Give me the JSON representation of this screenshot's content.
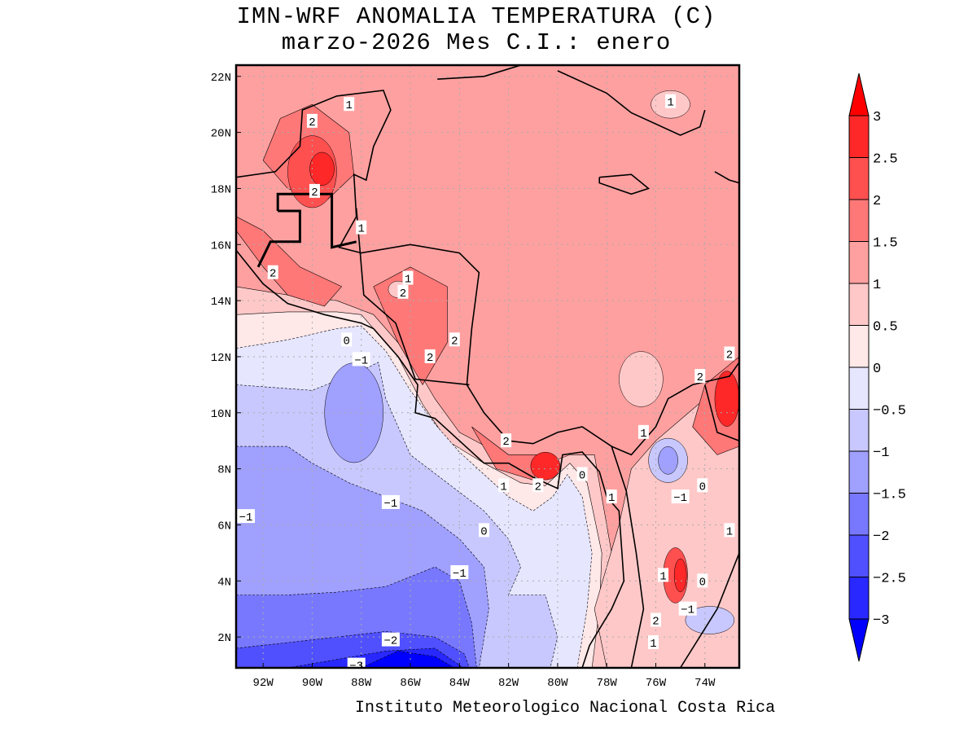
{
  "title": {
    "line1": "IMN-WRF  ANOMALIA TEMPERATURA (C)",
    "line2": "marzo-2026 Mes C.I.: enero"
  },
  "credit": "Instituto Meteorologico Nacional Costa Rica",
  "map": {
    "lon_range": [
      -93.1,
      -72.6
    ],
    "lat_range": [
      0.9,
      22.4
    ],
    "x_ticks": [
      {
        "lon": -92,
        "label": "92W"
      },
      {
        "lon": -90,
        "label": "90W"
      },
      {
        "lon": -88,
        "label": "88W"
      },
      {
        "lon": -86,
        "label": "86W"
      },
      {
        "lon": -84,
        "label": "84W"
      },
      {
        "lon": -82,
        "label": "82W"
      },
      {
        "lon": -80,
        "label": "80W"
      },
      {
        "lon": -78,
        "label": "78W"
      },
      {
        "lon": -76,
        "label": "76W"
      },
      {
        "lon": -74,
        "label": "74W"
      }
    ],
    "y_ticks": [
      {
        "lat": 2,
        "label": "2N"
      },
      {
        "lat": 4,
        "label": "4N"
      },
      {
        "lat": 6,
        "label": "6N"
      },
      {
        "lat": 8,
        "label": "8N"
      },
      {
        "lat": 10,
        "label": "10N"
      },
      {
        "lat": 12,
        "label": "12N"
      },
      {
        "lat": 14,
        "label": "14N"
      },
      {
        "lat": 16,
        "label": "16N"
      },
      {
        "lat": 18,
        "label": "18N"
      },
      {
        "lat": 20,
        "label": "20N"
      },
      {
        "lat": 22,
        "label": "22N"
      }
    ],
    "contour_labels": [
      {
        "lon": -88.5,
        "lat": 21.0,
        "text": "1"
      },
      {
        "lon": -90.0,
        "lat": 20.4,
        "text": "2"
      },
      {
        "lon": -89.9,
        "lat": 17.9,
        "text": "2"
      },
      {
        "lon": -88.0,
        "lat": 16.6,
        "text": "1"
      },
      {
        "lon": -91.6,
        "lat": 15.0,
        "text": "2"
      },
      {
        "lon": -86.1,
        "lat": 14.8,
        "text": "1"
      },
      {
        "lon": -86.3,
        "lat": 14.3,
        "text": "2"
      },
      {
        "lon": -84.2,
        "lat": 12.6,
        "text": "2"
      },
      {
        "lon": -85.2,
        "lat": 12.0,
        "text": "2"
      },
      {
        "lon": -88.6,
        "lat": 12.6,
        "text": "0"
      },
      {
        "lon": -88.0,
        "lat": 11.9,
        "text": "-1"
      },
      {
        "lon": -82.1,
        "lat": 9.0,
        "text": "2"
      },
      {
        "lon": -82.2,
        "lat": 7.4,
        "text": "1"
      },
      {
        "lon": -80.8,
        "lat": 7.4,
        "text": "2"
      },
      {
        "lon": -79.0,
        "lat": 7.8,
        "text": "0"
      },
      {
        "lon": -76.5,
        "lat": 9.3,
        "text": "1"
      },
      {
        "lon": -77.8,
        "lat": 7.0,
        "text": "1"
      },
      {
        "lon": -75.0,
        "lat": 7.0,
        "text": "-1"
      },
      {
        "lon": -74.1,
        "lat": 7.4,
        "text": "0"
      },
      {
        "lon": -73.0,
        "lat": 5.8,
        "text": "1"
      },
      {
        "lon": -75.7,
        "lat": 4.2,
        "text": "1"
      },
      {
        "lon": -74.1,
        "lat": 4.0,
        "text": "0"
      },
      {
        "lon": -74.7,
        "lat": 3.0,
        "text": "-1"
      },
      {
        "lon": -76.0,
        "lat": 2.6,
        "text": "2"
      },
      {
        "lon": -76.1,
        "lat": 1.8,
        "text": "1"
      },
      {
        "lon": -73.0,
        "lat": 12.1,
        "text": "2"
      },
      {
        "lon": -74.2,
        "lat": 11.3,
        "text": "2"
      },
      {
        "lon": -75.4,
        "lat": 21.1,
        "text": "1"
      },
      {
        "lon": -92.7,
        "lat": 6.3,
        "text": "-1"
      },
      {
        "lon": -86.8,
        "lat": 6.8,
        "text": "-1"
      },
      {
        "lon": -83.0,
        "lat": 5.8,
        "text": "0"
      },
      {
        "lon": -84.0,
        "lat": 4.3,
        "text": "-1"
      },
      {
        "lon": -86.8,
        "lat": 1.9,
        "text": "-2"
      },
      {
        "lon": -88.2,
        "lat": 1.0,
        "text": "-3"
      }
    ]
  },
  "colorbar": {
    "levels": [
      "-3",
      "-2.5",
      "-2",
      "-1.5",
      "-1",
      "-0.5",
      "0",
      "0.5",
      "1",
      "1.5",
      "2",
      "2.5",
      "3"
    ],
    "colors": [
      "#0000ff",
      "#2828ff",
      "#5050ff",
      "#7878ff",
      "#a0a0ff",
      "#c8c8ff",
      "#e6e6ff",
      "#ffe8e8",
      "#ffc8c8",
      "#ffa0a0",
      "#ff7878",
      "#ff5050",
      "#ff2828",
      "#ff0000"
    ]
  }
}
